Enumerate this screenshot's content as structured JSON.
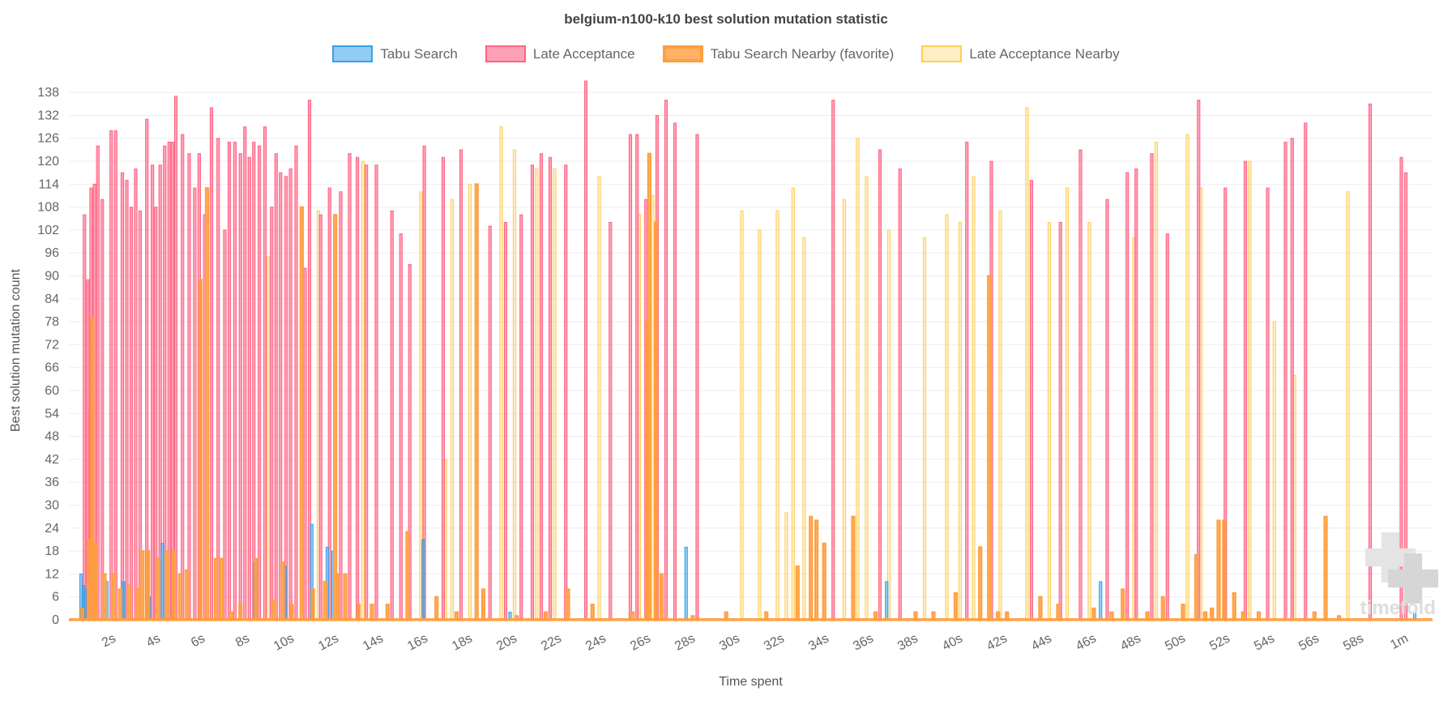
{
  "title": "belgium-n100-k10 best solution mutation statistic",
  "watermark": "timefold",
  "chart_data": {
    "type": "bar",
    "title": "belgium-n100-k10 best solution mutation statistic",
    "xlabel": "Time spent",
    "ylabel": "Best solution mutation count",
    "ylim": [
      0,
      141
    ],
    "y_tick_step": 6,
    "grid": "horizontal",
    "legend_position": "top",
    "x_ticks": {
      "values": [
        2,
        4,
        6,
        8,
        10,
        12,
        14,
        16,
        18,
        20,
        22,
        24,
        26,
        28,
        30,
        32,
        34,
        36,
        38,
        40,
        42,
        44,
        46,
        48,
        50,
        52,
        54,
        56,
        58,
        60
      ],
      "labels": [
        "2s",
        "4s",
        "6s",
        "8s",
        "10s",
        "12s",
        "14s",
        "16s",
        "18s",
        "20s",
        "22s",
        "24s",
        "26s",
        "28s",
        "30s",
        "32s",
        "34s",
        "36s",
        "38s",
        "40s",
        "42s",
        "44s",
        "46s",
        "48s",
        "50s",
        "52s",
        "54s",
        "56s",
        "58s",
        "1m"
      ]
    },
    "baseline_color": "#FF9F40",
    "series": [
      {
        "name": "Tabu Search",
        "fill": "rgba(54,162,235,0.55)",
        "stroke": "#36A2EB",
        "border_width": 1,
        "points": [
          [
            0.55,
            12
          ],
          [
            0.65,
            9
          ],
          [
            0.75,
            8
          ],
          [
            1.7,
            10
          ],
          [
            2.45,
            10
          ],
          [
            3.6,
            6
          ],
          [
            4.2,
            20
          ],
          [
            8.35,
            15
          ],
          [
            9.7,
            14
          ],
          [
            10.9,
            25
          ],
          [
            11.6,
            19
          ],
          [
            11.85,
            18
          ],
          [
            15.9,
            21
          ],
          [
            19.8,
            2
          ],
          [
            27.7,
            19
          ],
          [
            36.7,
            10
          ],
          [
            46.3,
            10
          ],
          [
            60.4,
            2
          ]
        ]
      },
      {
        "name": "Late Acceptance",
        "fill": "rgba(255,99,132,0.6)",
        "stroke": "#FF6384",
        "border_width": 1,
        "points": [
          [
            0.7,
            106
          ],
          [
            0.85,
            89
          ],
          [
            1.0,
            113
          ],
          [
            1.15,
            114
          ],
          [
            1.3,
            124
          ],
          [
            1.5,
            110
          ],
          [
            1.9,
            128
          ],
          [
            2.1,
            128
          ],
          [
            2.4,
            117
          ],
          [
            2.6,
            115
          ],
          [
            2.8,
            108
          ],
          [
            3.0,
            118
          ],
          [
            3.2,
            107
          ],
          [
            3.5,
            131
          ],
          [
            3.75,
            119
          ],
          [
            3.9,
            108
          ],
          [
            4.1,
            119
          ],
          [
            4.3,
            124
          ],
          [
            4.5,
            125
          ],
          [
            4.65,
            125
          ],
          [
            4.8,
            137
          ],
          [
            5.1,
            127
          ],
          [
            5.4,
            122
          ],
          [
            5.65,
            113
          ],
          [
            5.85,
            122
          ],
          [
            6.1,
            106
          ],
          [
            6.4,
            134
          ],
          [
            6.7,
            126
          ],
          [
            7.0,
            102
          ],
          [
            7.2,
            125
          ],
          [
            7.45,
            125
          ],
          [
            7.7,
            122
          ],
          [
            7.9,
            129
          ],
          [
            8.1,
            121
          ],
          [
            8.3,
            125
          ],
          [
            8.55,
            124
          ],
          [
            8.8,
            129
          ],
          [
            9.1,
            108
          ],
          [
            9.3,
            122
          ],
          [
            9.5,
            117
          ],
          [
            9.75,
            116
          ],
          [
            9.95,
            118
          ],
          [
            10.2,
            124
          ],
          [
            10.6,
            92
          ],
          [
            10.8,
            136
          ],
          [
            11.3,
            106
          ],
          [
            11.7,
            113
          ],
          [
            12.2,
            112
          ],
          [
            12.6,
            122
          ],
          [
            12.95,
            121
          ],
          [
            13.35,
            119
          ],
          [
            13.8,
            119
          ],
          [
            14.5,
            107
          ],
          [
            14.9,
            101
          ],
          [
            15.3,
            93
          ],
          [
            15.95,
            124
          ],
          [
            16.8,
            121
          ],
          [
            17.6,
            123
          ],
          [
            18.9,
            103
          ],
          [
            19.6,
            104
          ],
          [
            20.3,
            106
          ],
          [
            20.8,
            119
          ],
          [
            21.2,
            122
          ],
          [
            21.6,
            121
          ],
          [
            22.3,
            119
          ],
          [
            23.2,
            141
          ],
          [
            24.3,
            104
          ],
          [
            25.2,
            127
          ],
          [
            25.5,
            127
          ],
          [
            25.9,
            110
          ],
          [
            26.4,
            132
          ],
          [
            26.8,
            136
          ],
          [
            27.2,
            130
          ],
          [
            28.2,
            127
          ],
          [
            34.3,
            136
          ],
          [
            36.4,
            123
          ],
          [
            37.3,
            118
          ],
          [
            40.3,
            125
          ],
          [
            41.4,
            120
          ],
          [
            43.2,
            115
          ],
          [
            44.5,
            104
          ],
          [
            45.4,
            123
          ],
          [
            46.6,
            110
          ],
          [
            47.5,
            117
          ],
          [
            47.9,
            118
          ],
          [
            48.6,
            122
          ],
          [
            49.3,
            101
          ],
          [
            50.7,
            136
          ],
          [
            51.9,
            113
          ],
          [
            52.8,
            120
          ],
          [
            53.8,
            113
          ],
          [
            54.6,
            125
          ],
          [
            54.9,
            126
          ],
          [
            55.5,
            130
          ],
          [
            58.4,
            135
          ],
          [
            59.8,
            121
          ],
          [
            60.0,
            117
          ]
        ]
      },
      {
        "name": "Tabu Search Nearby (favorite)",
        "fill": "rgba(255,159,64,0.8)",
        "stroke": "#FF9F40",
        "border_width": 2,
        "points": [
          [
            1.05,
            79
          ],
          [
            5.9,
            89
          ],
          [
            6.2,
            113
          ],
          [
            10.45,
            108
          ],
          [
            11.95,
            106
          ],
          [
            18.3,
            114
          ],
          [
            25.95,
            78
          ],
          [
            26.05,
            122
          ],
          [
            26.35,
            104
          ],
          [
            41.3,
            90
          ],
          [
            0.6,
            3
          ],
          [
            0.9,
            21
          ],
          [
            1.2,
            20
          ],
          [
            1.6,
            12
          ],
          [
            2.0,
            12
          ],
          [
            2.3,
            8
          ],
          [
            2.7,
            9
          ],
          [
            3.1,
            8
          ],
          [
            3.3,
            18
          ],
          [
            3.55,
            18
          ],
          [
            4.0,
            16
          ],
          [
            4.4,
            18
          ],
          [
            4.7,
            18
          ],
          [
            5.0,
            12
          ],
          [
            5.3,
            13
          ],
          [
            6.6,
            16
          ],
          [
            6.85,
            16
          ],
          [
            7.3,
            2
          ],
          [
            7.7,
            4
          ],
          [
            8.4,
            16
          ],
          [
            9.2,
            5
          ],
          [
            9.6,
            15
          ],
          [
            10.0,
            4
          ],
          [
            10.95,
            8
          ],
          [
            11.5,
            10
          ],
          [
            12.05,
            12
          ],
          [
            12.4,
            12
          ],
          [
            13.0,
            4
          ],
          [
            13.6,
            4
          ],
          [
            14.3,
            4
          ],
          [
            15.2,
            23
          ],
          [
            16.5,
            6
          ],
          [
            17.4,
            2
          ],
          [
            18.6,
            8
          ],
          [
            20.1,
            1
          ],
          [
            21.4,
            2
          ],
          [
            22.4,
            8
          ],
          [
            23.5,
            4
          ],
          [
            25.3,
            2
          ],
          [
            26.6,
            12
          ],
          [
            28.0,
            1
          ],
          [
            29.5,
            2
          ],
          [
            31.3,
            2
          ],
          [
            32.7,
            14
          ],
          [
            33.3,
            27
          ],
          [
            33.55,
            26
          ],
          [
            33.9,
            20
          ],
          [
            35.2,
            27
          ],
          [
            36.2,
            2
          ],
          [
            38.0,
            2
          ],
          [
            38.8,
            2
          ],
          [
            39.8,
            7
          ],
          [
            40.9,
            19
          ],
          [
            41.7,
            2
          ],
          [
            42.1,
            2
          ],
          [
            43.6,
            6
          ],
          [
            44.4,
            4
          ],
          [
            46.0,
            3
          ],
          [
            46.8,
            2
          ],
          [
            47.3,
            8
          ],
          [
            48.4,
            2
          ],
          [
            49.1,
            6
          ],
          [
            50.0,
            4
          ],
          [
            50.6,
            17
          ],
          [
            51.0,
            2
          ],
          [
            51.3,
            3
          ],
          [
            51.6,
            26
          ],
          [
            51.85,
            26
          ],
          [
            52.3,
            7
          ],
          [
            52.7,
            2
          ],
          [
            53.4,
            2
          ],
          [
            55.9,
            2
          ],
          [
            56.4,
            27
          ],
          [
            57.0,
            1
          ]
        ]
      },
      {
        "name": "Late Acceptance Nearby",
        "fill": "rgba(255,205,86,0.35)",
        "stroke": "#FFCD56",
        "border_width": 1,
        "points": [
          [
            0.95,
            55
          ],
          [
            8.95,
            95
          ],
          [
            11.2,
            107
          ],
          [
            13.2,
            120
          ],
          [
            15.8,
            112
          ],
          [
            16.9,
            42
          ],
          [
            17.2,
            110
          ],
          [
            18.0,
            114
          ],
          [
            19.4,
            129
          ],
          [
            20.0,
            123
          ],
          [
            21.0,
            118
          ],
          [
            21.8,
            118
          ],
          [
            23.8,
            116
          ],
          [
            25.6,
            106
          ],
          [
            26.2,
            111
          ],
          [
            30.2,
            107
          ],
          [
            31.0,
            102
          ],
          [
            31.8,
            107
          ],
          [
            32.2,
            28
          ],
          [
            32.5,
            113
          ],
          [
            33.0,
            100
          ],
          [
            34.8,
            110
          ],
          [
            35.4,
            126
          ],
          [
            35.8,
            116
          ],
          [
            36.8,
            102
          ],
          [
            38.4,
            100
          ],
          [
            39.4,
            106
          ],
          [
            40.0,
            104
          ],
          [
            40.6,
            116
          ],
          [
            41.8,
            107
          ],
          [
            43.0,
            134
          ],
          [
            44.0,
            104
          ],
          [
            44.8,
            113
          ],
          [
            45.8,
            104
          ],
          [
            47.8,
            100
          ],
          [
            48.8,
            125
          ],
          [
            50.2,
            127
          ],
          [
            50.8,
            113
          ],
          [
            53.0,
            120
          ],
          [
            54.1,
            78
          ],
          [
            55.0,
            64
          ],
          [
            57.4,
            112
          ]
        ]
      }
    ]
  }
}
